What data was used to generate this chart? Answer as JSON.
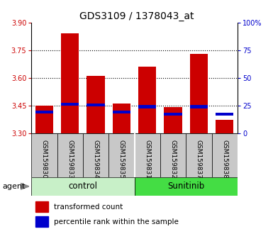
{
  "title": "GDS3109 / 1378043_at",
  "samples": [
    "GSM159830",
    "GSM159833",
    "GSM159834",
    "GSM159835",
    "GSM159831",
    "GSM159832",
    "GSM159837",
    "GSM159838"
  ],
  "transformed_count": [
    3.45,
    3.84,
    3.61,
    3.46,
    3.66,
    3.44,
    3.73,
    3.37
  ],
  "percentile_rank_value": [
    3.405,
    3.45,
    3.445,
    3.405,
    3.435,
    3.395,
    3.435,
    3.395
  ],
  "bar_base": 3.3,
  "y_left_ticks": [
    3.3,
    3.45,
    3.6,
    3.75,
    3.9
  ],
  "y_right_ticks": [
    0,
    25,
    50,
    75,
    100
  ],
  "ylim": [
    3.3,
    3.9
  ],
  "groups": [
    {
      "label": "control",
      "color": "#c8f0c8",
      "start": 0,
      "end": 4
    },
    {
      "label": "Sunitinib",
      "color": "#44dd44",
      "start": 4,
      "end": 8
    }
  ],
  "bar_color": "#cc0000",
  "percentile_color": "#0000cc",
  "bar_width": 0.7,
  "background_color": "#ffffff",
  "plot_bg": "#ffffff",
  "xlabel_bg": "#c8c8c8",
  "title_fontsize": 10,
  "tick_fontsize": 7,
  "sample_fontsize": 6.5,
  "legend_fontsize": 7.5,
  "group_fontsize": 8.5
}
